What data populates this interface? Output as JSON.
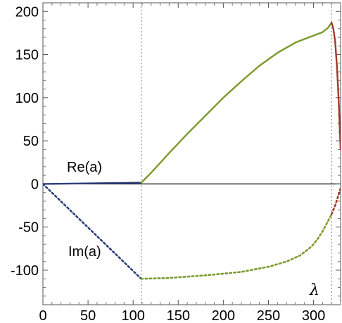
{
  "chart_data": {
    "type": "line",
    "title": "",
    "xlabel": "λ",
    "ylabel": "",
    "xlim": [
      0,
      330
    ],
    "ylim": [
      -140,
      210
    ],
    "xticks": [
      0,
      50,
      100,
      150,
      200,
      250,
      300
    ],
    "yticks": [
      -100,
      -50,
      0,
      50,
      100,
      150,
      200
    ],
    "xtick_labels": [
      "0",
      "50",
      "100",
      "150",
      "200",
      "250",
      "300"
    ],
    "ytick_labels": [
      "-100",
      "-50",
      "0",
      "50",
      "100",
      "150",
      "200"
    ],
    "vlines": [
      109,
      320
    ],
    "zero_line": true,
    "grid": false,
    "annotations": [
      "Re(a)",
      "Im(a)"
    ],
    "series": [
      {
        "part": "real",
        "style": "solid",
        "color": "#2b3f7a",
        "x": [
          0,
          109
        ],
        "y": [
          0,
          1.5
        ]
      },
      {
        "part": "real",
        "style": "solid",
        "color": "#7a9a2a",
        "x": [
          109,
          120,
          140,
          160,
          180,
          200,
          220,
          240,
          260,
          280,
          300,
          310,
          316,
          320
        ],
        "y": [
          1.5,
          13,
          36,
          58,
          79,
          100,
          119,
          137,
          152,
          164,
          172,
          176,
          181,
          187
        ]
      },
      {
        "part": "real",
        "style": "solid",
        "color": "#a03a2a",
        "x": [
          320,
          322,
          324,
          326,
          328,
          330
        ],
        "y": [
          187,
          180,
          165,
          135,
          95,
          40
        ]
      },
      {
        "part": "imaginary",
        "style": "dotted",
        "color": "#2b3f7a",
        "x": [
          0,
          109
        ],
        "y": [
          0,
          -110
        ]
      },
      {
        "part": "imaginary",
        "style": "dotted",
        "color": "#7a9a2a",
        "x": [
          109,
          140,
          180,
          220,
          250,
          270,
          285,
          295,
          300,
          305,
          310,
          315,
          320
        ],
        "y": [
          -110,
          -109,
          -106,
          -102,
          -96,
          -90,
          -83,
          -75,
          -70,
          -63,
          -55,
          -45,
          -35
        ]
      },
      {
        "part": "imaginary",
        "style": "dotted",
        "color": "#a03a2a",
        "x": [
          320,
          324,
          328,
          330
        ],
        "y": [
          -35,
          -25,
          -12,
          -5
        ]
      }
    ]
  }
}
